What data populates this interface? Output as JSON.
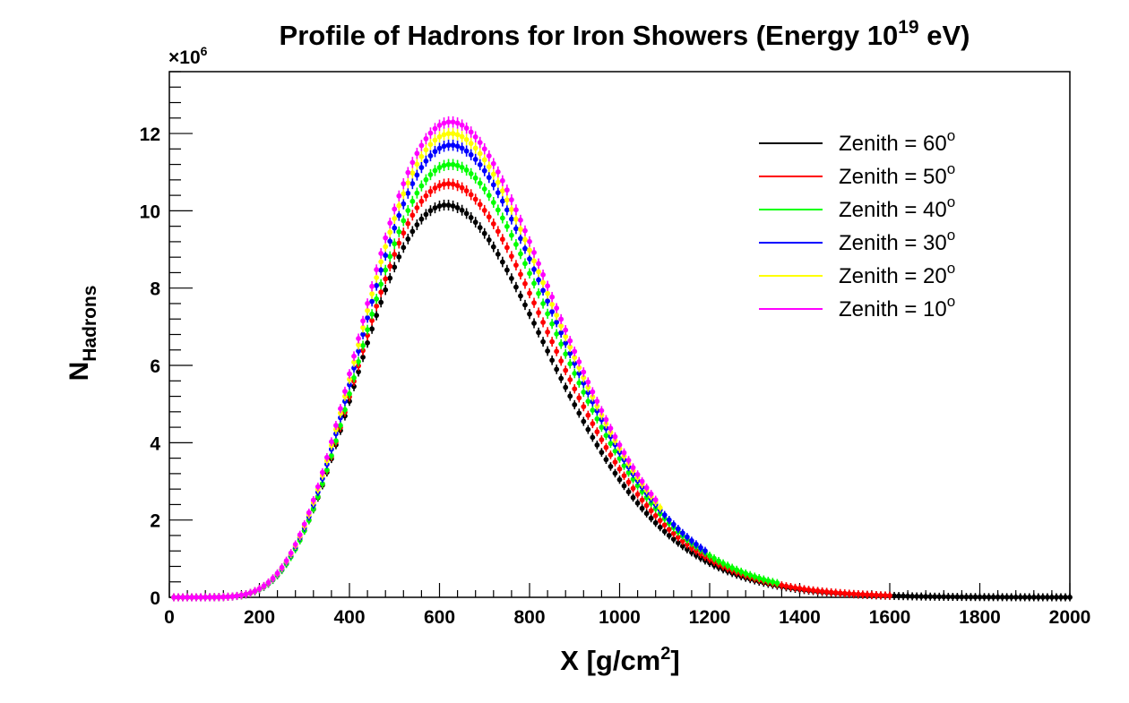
{
  "chart_data": {
    "type": "scatter",
    "title": {
      "main": "Profile of Hadrons for Iron Showers (Energy 10",
      "exponent": "19",
      "suffix": " eV)"
    },
    "xlabel": {
      "main": "X [g/cm",
      "exponent": "2",
      "suffix": "]"
    },
    "ylabel": {
      "main": "N",
      "subscript": "Hadrons"
    },
    "y_multiplier": {
      "prefix": "×10",
      "exponent": "6"
    },
    "xlim": [
      0,
      2000
    ],
    "ylim": [
      0,
      13.6
    ],
    "x_ticks": [
      0,
      200,
      400,
      600,
      800,
      1000,
      1200,
      1400,
      1600,
      1800,
      2000
    ],
    "y_ticks": [
      0,
      2,
      4,
      6,
      8,
      10,
      12
    ],
    "legend_position": "top-right",
    "series": [
      {
        "name": "Zenith = 10",
        "name_exponent": "o",
        "color": "#ff00ff",
        "peak_x": 625,
        "peak_y": 12.3,
        "x_end": 1080
      },
      {
        "name": "Zenith = 20",
        "name_exponent": "o",
        "color": "#ffff00",
        "peak_x": 625,
        "peak_y": 12.0,
        "x_end": 1090
      },
      {
        "name": "Zenith = 30",
        "name_exponent": "o",
        "color": "#0000ff",
        "peak_x": 625,
        "peak_y": 11.7,
        "x_end": 1195
      },
      {
        "name": "Zenith = 40",
        "name_exponent": "o",
        "color": "#00ff00",
        "peak_x": 625,
        "peak_y": 11.2,
        "x_end": 1350
      },
      {
        "name": "Zenith = 50",
        "name_exponent": "o",
        "color": "#ff0000",
        "peak_x": 620,
        "peak_y": 10.7,
        "x_end": 1600
      },
      {
        "name": "Zenith = 60",
        "name_exponent": "o",
        "color": "#000000",
        "peak_x": 615,
        "peak_y": 10.15,
        "x_end": 2000
      }
    ],
    "legend_order": [
      5,
      4,
      3,
      2,
      1,
      0
    ]
  }
}
